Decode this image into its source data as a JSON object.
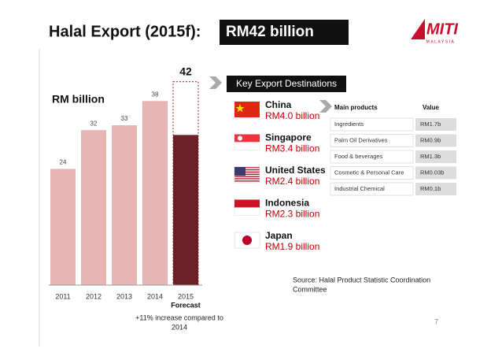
{
  "header": {
    "title": "Halal Export (2015f):",
    "highlight": "RM42 billion",
    "logo": "MITI",
    "logo_sub": "MALAYSIA"
  },
  "chart_data": {
    "type": "bar",
    "y_label": "RM billion",
    "categories": [
      "2011",
      "2012",
      "2013",
      "2014",
      "2015"
    ],
    "values": [
      24,
      32,
      33,
      38,
      31
    ],
    "colors": [
      "#e8b5b5",
      "#e8b5b5",
      "#e8b5b5",
      "#e8b5b5",
      "#6b2227"
    ],
    "ylim": [
      0,
      40
    ],
    "forecast": {
      "value": 42,
      "label": "Forecast"
    },
    "annotation": [
      "+11% increase compared to",
      "2014"
    ]
  },
  "destinations": {
    "title": "Key Export Destinations",
    "items": [
      {
        "country": "China",
        "value": "RM4.0 billion"
      },
      {
        "country": "Singapore",
        "value": "RM3.4 billion"
      },
      {
        "country": "United States",
        "value": "RM2.4 billion"
      },
      {
        "country": "Indonesia",
        "value": "RM2.3 billion"
      },
      {
        "country": "Japan",
        "value": "RM1.9 billion"
      }
    ]
  },
  "products": {
    "headers": [
      "Main products",
      "Value"
    ],
    "rows": [
      [
        "Ingredients",
        "RM1.7b"
      ],
      [
        "Palm Oil Derivatives",
        "RM0.9b"
      ],
      [
        "Food & beverages",
        "RM1.3b"
      ],
      [
        "Cosmetic & Personal Care",
        "RM0.03b"
      ],
      [
        "Industrial Chemical",
        "RM0.1b"
      ]
    ]
  },
  "source": [
    "Source: Halal Product Statistic Coordination",
    "Committee"
  ],
  "page": "7"
}
